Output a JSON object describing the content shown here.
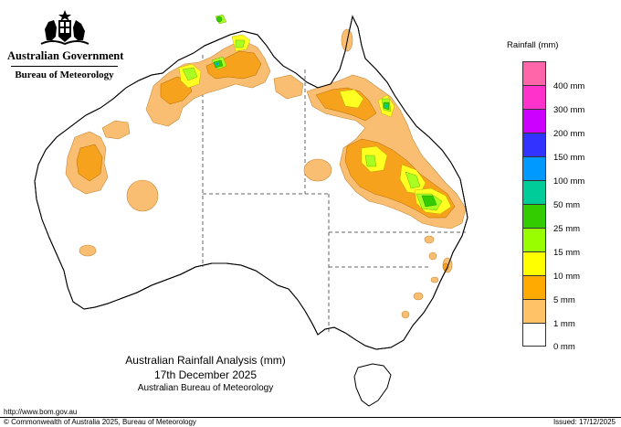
{
  "header": {
    "government": "Australian Government",
    "bureau": "Bureau of Meteorology"
  },
  "legend": {
    "title": "Rainfall (mm)",
    "items": [
      {
        "label": "",
        "color": "#ff66aa"
      },
      {
        "label": "400 mm",
        "color": "#ff33cc"
      },
      {
        "label": "300 mm",
        "color": "#cc00ff"
      },
      {
        "label": "200 mm",
        "color": "#3333ff"
      },
      {
        "label": "150 mm",
        "color": "#0099ff"
      },
      {
        "label": "100 mm",
        "color": "#00cc99"
      },
      {
        "label": "50 mm",
        "color": "#33cc00"
      },
      {
        "label": "25 mm",
        "color": "#99ff00"
      },
      {
        "label": "15 mm",
        "color": "#ffff00"
      },
      {
        "label": "10 mm",
        "color": "#ffaa00"
      },
      {
        "label": "5 mm",
        "color": "#ffc266"
      },
      {
        "label": "1 mm",
        "color": "#ffffff"
      },
      {
        "label": "0 mm",
        "color": ""
      }
    ]
  },
  "caption": {
    "title": "Australian Rainfall Analysis (mm)",
    "date": "17th December 2025",
    "source": "Australian Bureau of Meteorology"
  },
  "footer": {
    "url": "http://www.bom.gov.au",
    "copyright": "© Commonwealth of Australia 2025, Bureau of Meteorology",
    "issued": "Issued: 17/12/2025"
  }
}
